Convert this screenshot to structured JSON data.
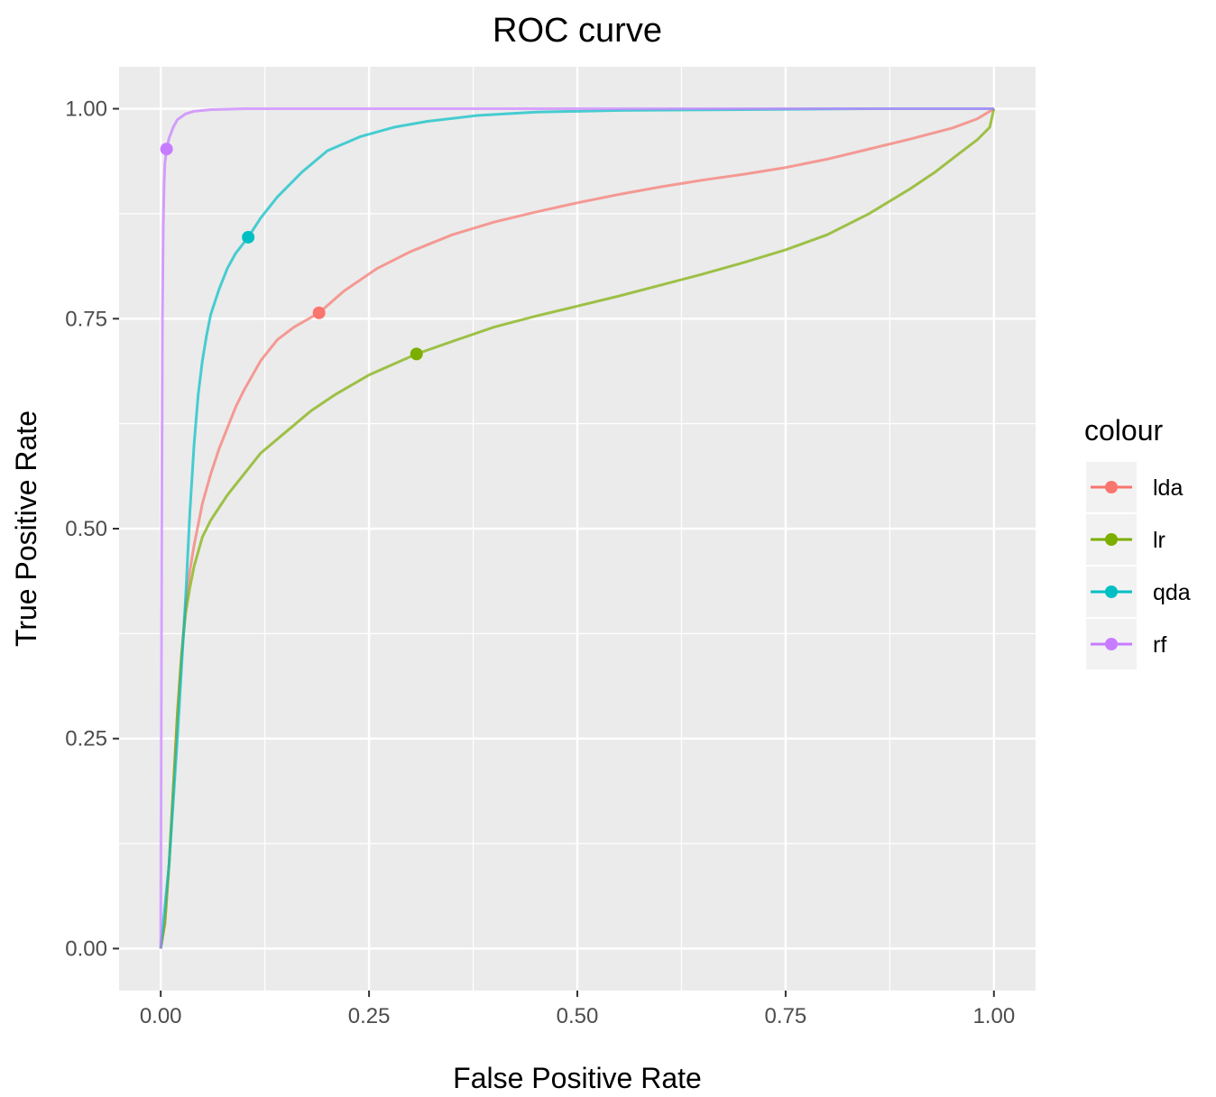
{
  "chart_data": {
    "type": "line",
    "title": "ROC curve",
    "xlabel": "False Positive Rate",
    "ylabel": "True Positive Rate",
    "xlim": [
      -0.05,
      1.05
    ],
    "ylim": [
      -0.05,
      1.05
    ],
    "x_ticks": [
      "0.00",
      "0.25",
      "0.50",
      "0.75",
      "1.00"
    ],
    "y_ticks": [
      "0.00",
      "0.25",
      "0.50",
      "0.75",
      "1.00"
    ],
    "grid": true,
    "legend": {
      "title": "colour",
      "position": "right"
    },
    "series": [
      {
        "name": "lda",
        "color": "#F8766D",
        "point": [
          0.19,
          0.757
        ],
        "x": [
          0,
          0.005,
          0.01,
          0.015,
          0.02,
          0.025,
          0.03,
          0.035,
          0.04,
          0.05,
          0.06,
          0.07,
          0.08,
          0.09,
          0.1,
          0.12,
          0.14,
          0.16,
          0.19,
          0.22,
          0.26,
          0.3,
          0.35,
          0.4,
          0.45,
          0.5,
          0.55,
          0.6,
          0.65,
          0.7,
          0.75,
          0.8,
          0.85,
          0.9,
          0.95,
          0.98,
          1.0
        ],
        "y": [
          0,
          0.03,
          0.1,
          0.19,
          0.28,
          0.35,
          0.41,
          0.45,
          0.48,
          0.53,
          0.565,
          0.595,
          0.62,
          0.645,
          0.665,
          0.7,
          0.725,
          0.74,
          0.757,
          0.783,
          0.81,
          0.83,
          0.85,
          0.865,
          0.877,
          0.888,
          0.898,
          0.907,
          0.915,
          0.922,
          0.93,
          0.94,
          0.952,
          0.964,
          0.977,
          0.988,
          1.0
        ]
      },
      {
        "name": "lr",
        "color": "#7CAE00",
        "point": [
          0.307,
          0.708
        ],
        "x": [
          0,
          0.005,
          0.01,
          0.015,
          0.02,
          0.025,
          0.03,
          0.035,
          0.04,
          0.05,
          0.06,
          0.08,
          0.1,
          0.12,
          0.15,
          0.18,
          0.21,
          0.25,
          0.307,
          0.35,
          0.4,
          0.45,
          0.5,
          0.55,
          0.6,
          0.65,
          0.7,
          0.75,
          0.8,
          0.85,
          0.9,
          0.93,
          0.96,
          0.98,
          0.995,
          1.0
        ],
        "y": [
          0,
          0.03,
          0.1,
          0.19,
          0.28,
          0.35,
          0.4,
          0.43,
          0.455,
          0.49,
          0.51,
          0.54,
          0.565,
          0.59,
          0.615,
          0.64,
          0.66,
          0.683,
          0.708,
          0.723,
          0.74,
          0.753,
          0.765,
          0.777,
          0.79,
          0.803,
          0.817,
          0.832,
          0.85,
          0.875,
          0.905,
          0.925,
          0.948,
          0.963,
          0.978,
          1.0
        ]
      },
      {
        "name": "qda",
        "color": "#00BFC4",
        "point": [
          0.105,
          0.847
        ],
        "x": [
          0,
          0.01,
          0.02,
          0.03,
          0.035,
          0.04,
          0.045,
          0.05,
          0.055,
          0.06,
          0.07,
          0.08,
          0.09,
          0.105,
          0.12,
          0.14,
          0.17,
          0.2,
          0.24,
          0.28,
          0.32,
          0.38,
          0.45,
          0.55,
          0.7,
          0.85,
          1.0
        ],
        "y": [
          0,
          0.1,
          0.25,
          0.42,
          0.52,
          0.6,
          0.66,
          0.7,
          0.73,
          0.755,
          0.785,
          0.81,
          0.828,
          0.847,
          0.87,
          0.895,
          0.925,
          0.95,
          0.967,
          0.978,
          0.985,
          0.992,
          0.996,
          0.998,
          0.999,
          1.0,
          1.0
        ]
      },
      {
        "name": "rf",
        "color": "#C77CFF",
        "point": [
          0.007,
          0.952
        ],
        "x": [
          0,
          0.001,
          0.002,
          0.003,
          0.004,
          0.005,
          0.007,
          0.01,
          0.015,
          0.02,
          0.03,
          0.04,
          0.06,
          0.1,
          0.2,
          0.4,
          0.7,
          1.0
        ],
        "y": [
          0,
          0.45,
          0.75,
          0.86,
          0.91,
          0.935,
          0.952,
          0.965,
          0.978,
          0.987,
          0.994,
          0.997,
          0.999,
          1.0,
          1.0,
          1.0,
          1.0,
          1.0
        ]
      }
    ]
  }
}
